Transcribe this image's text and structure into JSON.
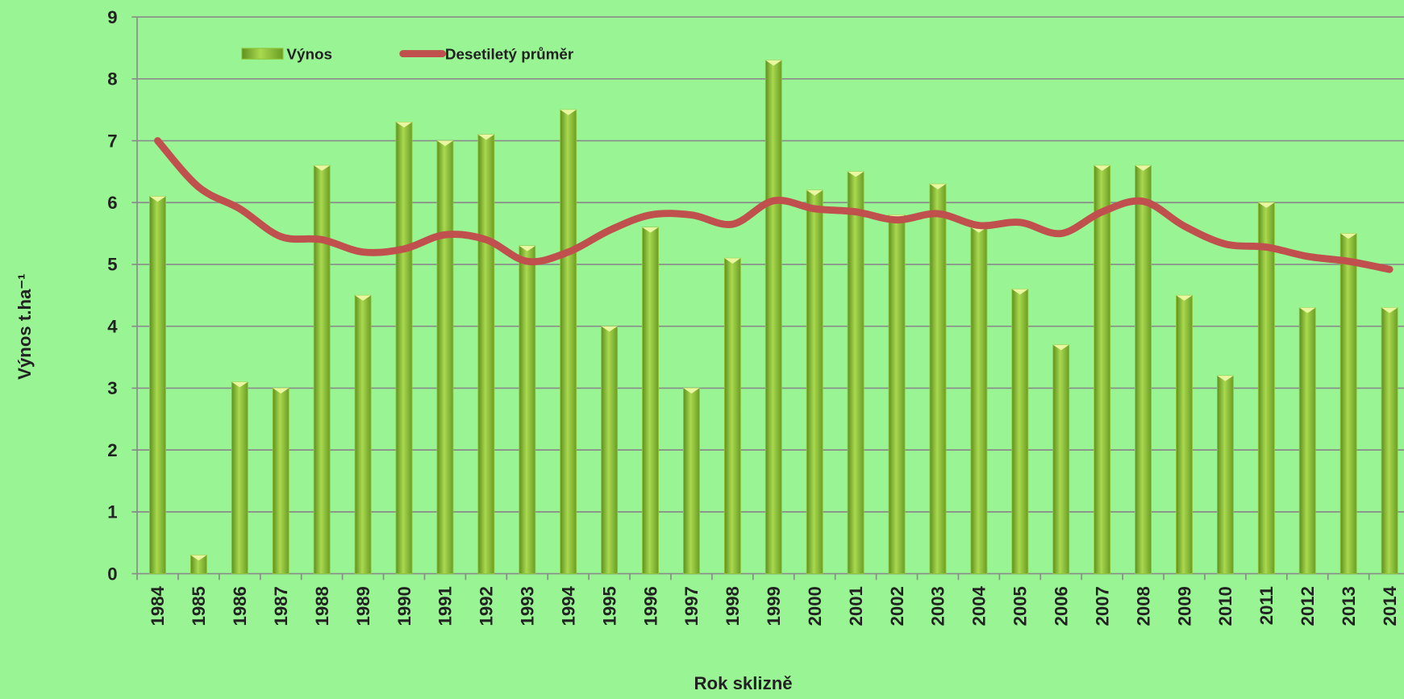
{
  "chart_data": {
    "type": "bar",
    "x_label": "Rok sklizně",
    "y_label": "Výnos t.ha⁻¹",
    "categories": [
      "1984",
      "1985",
      "1986",
      "1987",
      "1988",
      "1989",
      "1990",
      "1991",
      "1992",
      "1993",
      "1994",
      "1995",
      "1996",
      "1997",
      "1998",
      "1999",
      "2000",
      "2001",
      "2002",
      "2003",
      "2004",
      "2005",
      "2006",
      "2007",
      "2008",
      "2009",
      "2010",
      "2011",
      "2012",
      "2013",
      "2014"
    ],
    "series": [
      {
        "name": "Výnos",
        "type": "bar",
        "color": "#8fc43a",
        "values": [
          6.1,
          0.3,
          3.1,
          3.0,
          6.6,
          4.5,
          7.3,
          7.0,
          7.1,
          5.3,
          7.5,
          4.0,
          5.6,
          3.0,
          5.1,
          8.3,
          6.2,
          6.5,
          5.8,
          6.3,
          5.6,
          4.6,
          3.7,
          6.6,
          6.6,
          4.5,
          3.2,
          6.0,
          4.3,
          5.5,
          4.3
        ]
      },
      {
        "name": "Desetiletý průměr",
        "type": "line",
        "color": "#c0504d",
        "values": [
          7.0,
          6.25,
          5.9,
          5.45,
          5.4,
          5.2,
          5.25,
          5.48,
          5.4,
          5.05,
          5.2,
          5.55,
          5.8,
          5.8,
          5.65,
          6.03,
          5.9,
          5.85,
          5.72,
          5.82,
          5.63,
          5.68,
          5.5,
          5.85,
          6.02,
          5.62,
          5.33,
          5.28,
          5.13,
          5.05,
          4.92
        ]
      }
    ],
    "ylim": [
      0,
      9
    ],
    "yticks": [
      0,
      1,
      2,
      3,
      4,
      5,
      6,
      7,
      8,
      9
    ],
    "grid": true,
    "legend": "top-left"
  }
}
